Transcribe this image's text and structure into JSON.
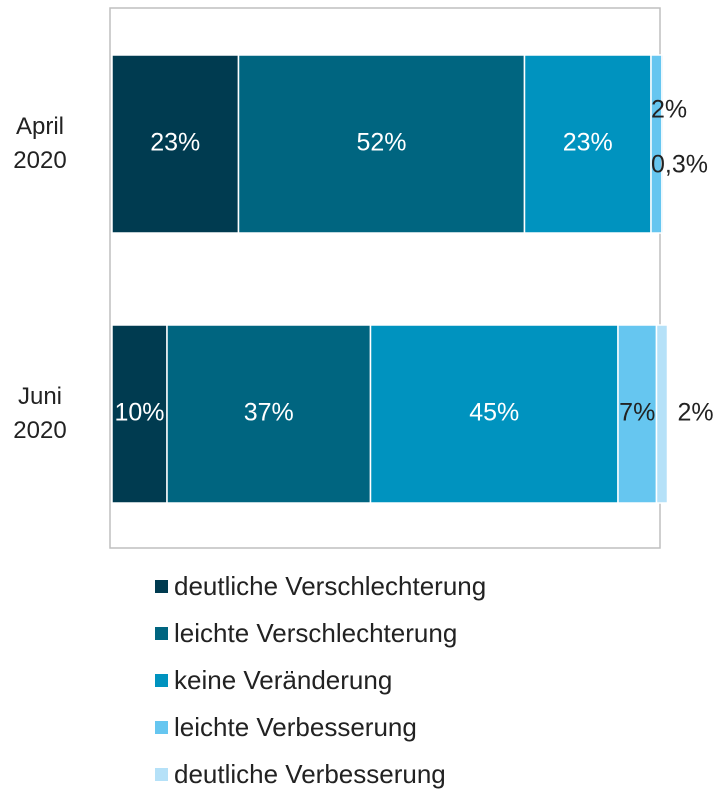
{
  "chart_data": {
    "type": "stacked_bar_horizontal",
    "categories": [
      "April 2020",
      "Juni 2020"
    ],
    "series": [
      {
        "name": "deutliche Verschlechterung",
        "color": "#003b50",
        "values": [
          23,
          10
        ],
        "value_labels": [
          "23%",
          "10%"
        ]
      },
      {
        "name": "leichte Verschlechterung",
        "color": "#006580",
        "values": [
          52,
          37
        ],
        "value_labels": [
          "52%",
          "37%"
        ]
      },
      {
        "name": "keine Veränderung",
        "color": "#0093bf",
        "values": [
          23,
          45
        ],
        "value_labels": [
          "23%",
          "45%"
        ]
      },
      {
        "name": "leichte Verbesserung",
        "color": "#66c6f0",
        "values": [
          2,
          7
        ],
        "value_labels": [
          "2%",
          "7%"
        ]
      },
      {
        "name": "deutliche Verbesserung",
        "color": "#b5e1f8",
        "values": [
          0.3,
          2
        ],
        "value_labels": [
          "0,3%",
          "2%"
        ]
      }
    ],
    "xlim": [
      0,
      100
    ]
  }
}
